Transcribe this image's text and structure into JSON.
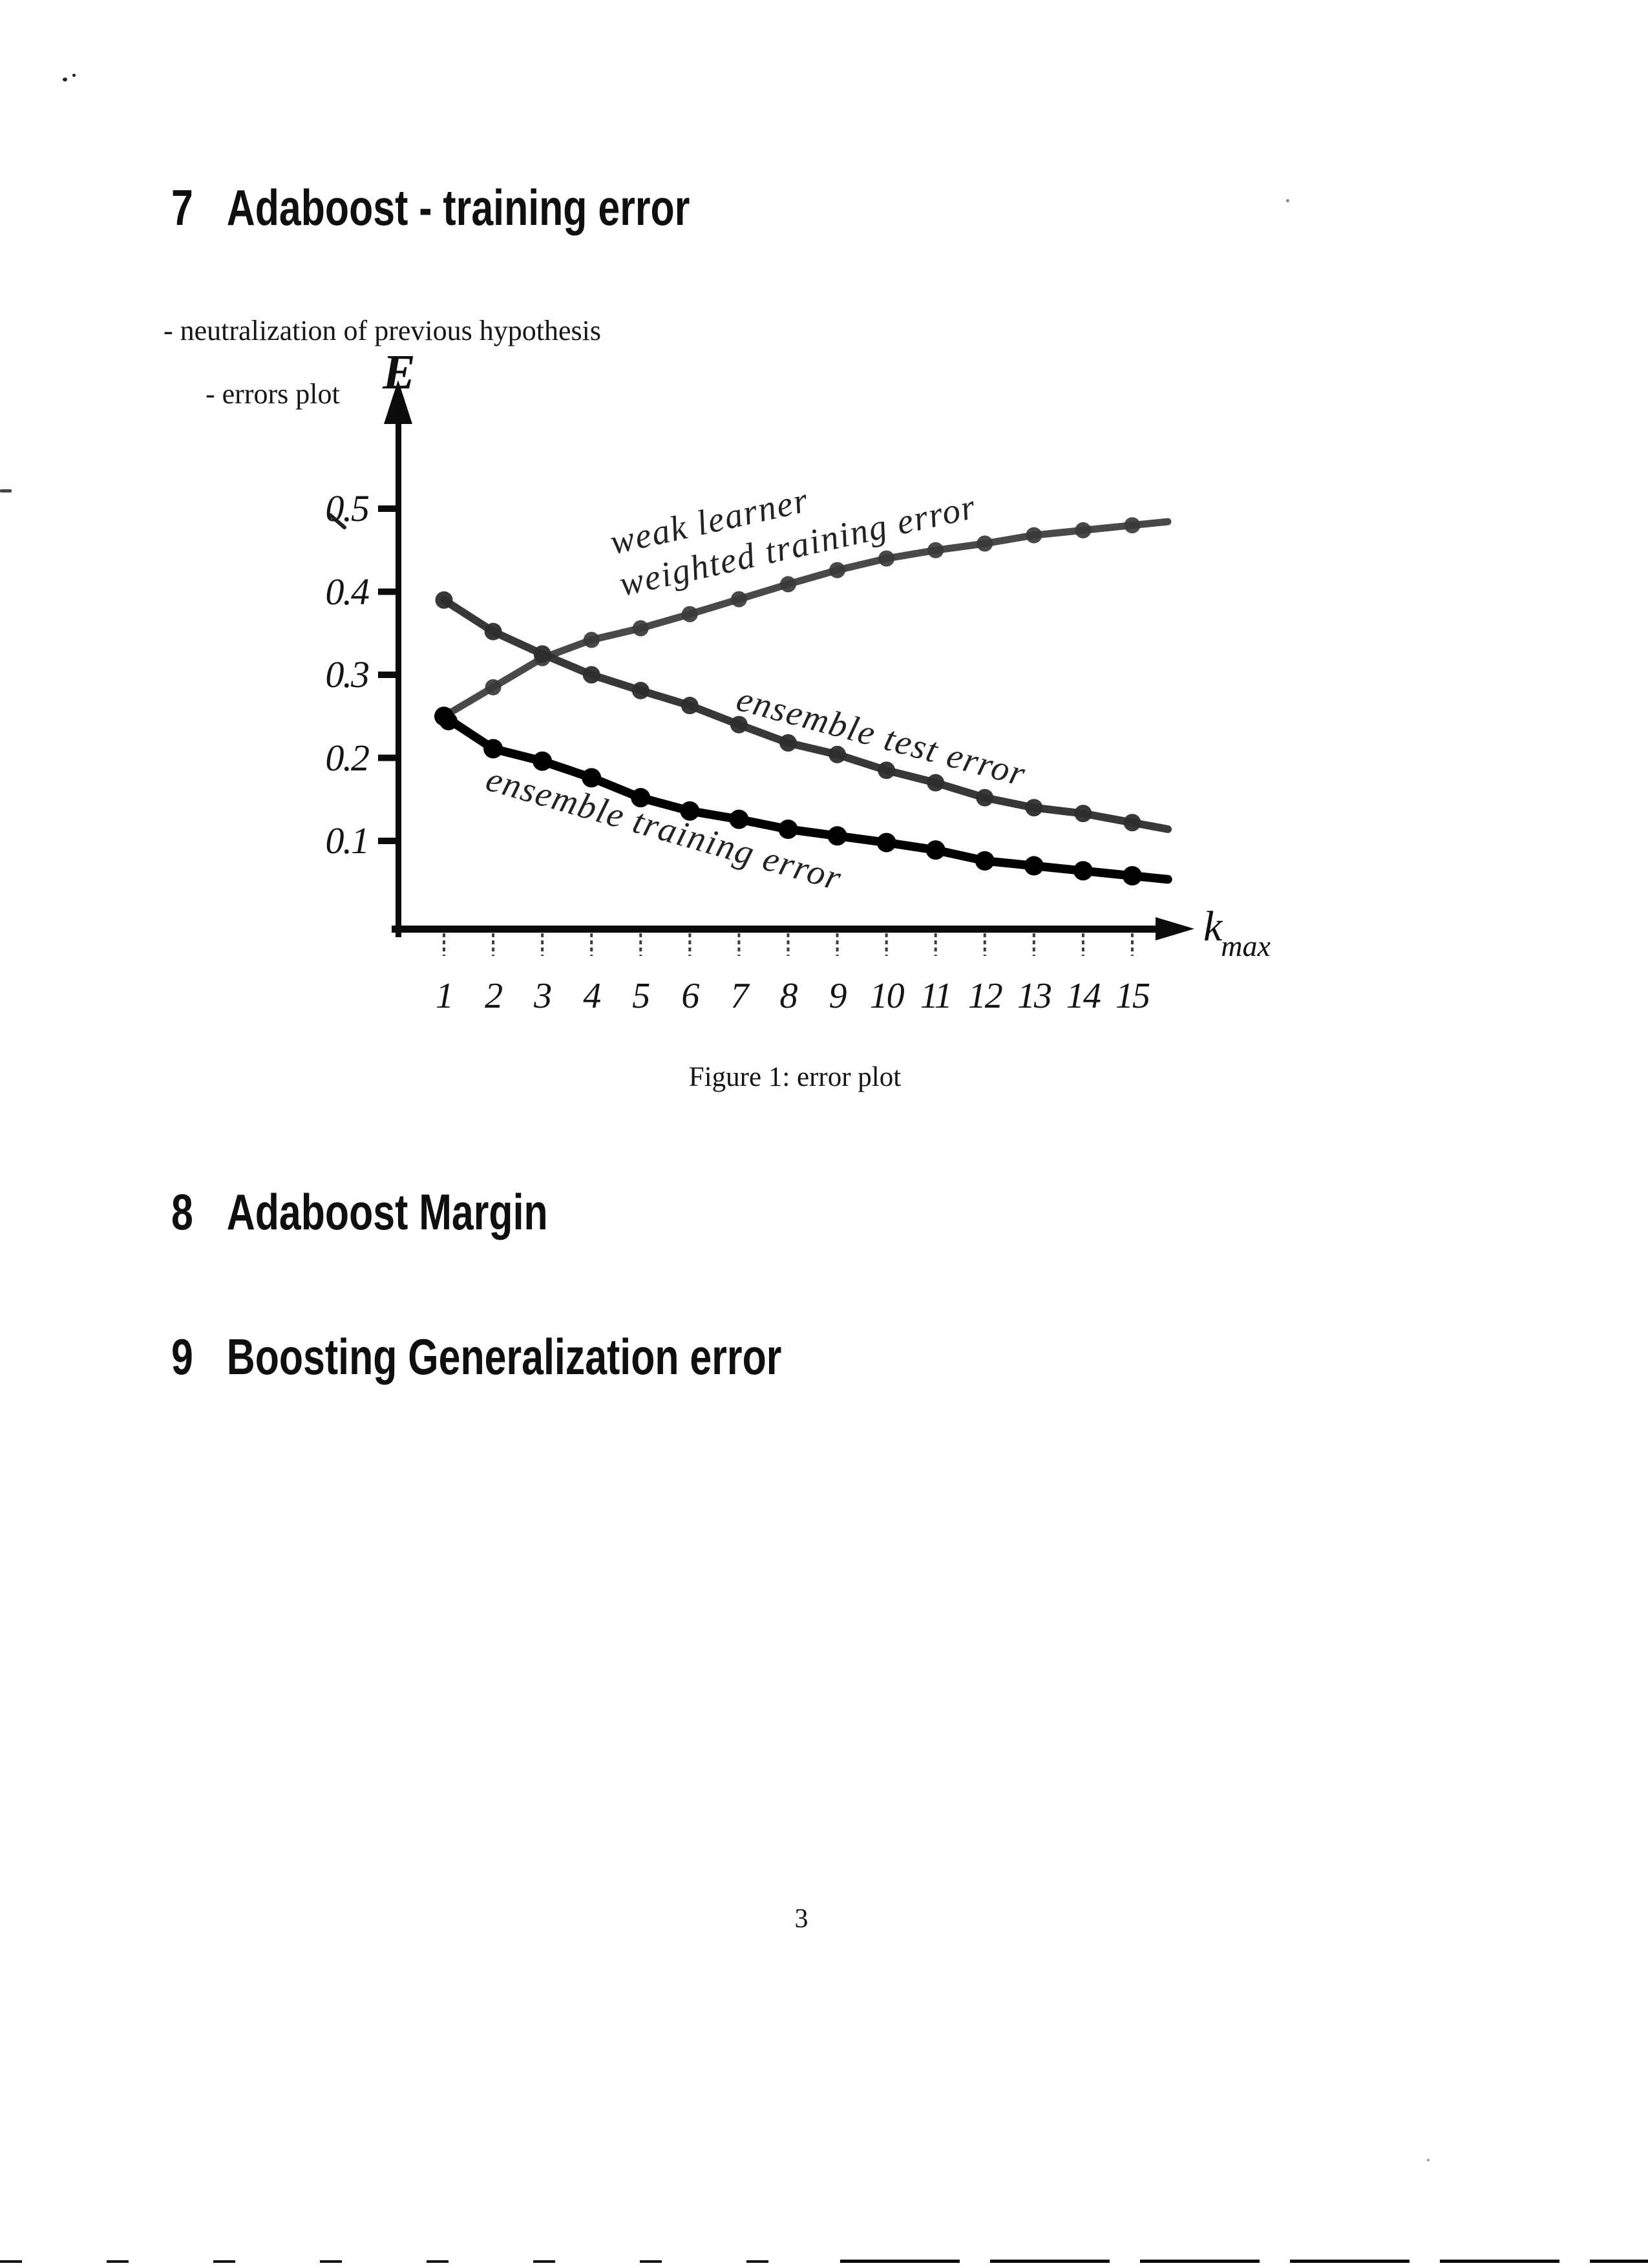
{
  "sections": [
    {
      "number": "7",
      "title": "Adaboost - training error"
    },
    {
      "number": "8",
      "title": "Adaboost Margin"
    },
    {
      "number": "9",
      "title": "Boosting Generalization error"
    }
  ],
  "notes": {
    "line1": "- neutralization of previous hypothesis",
    "line2": "- errors plot"
  },
  "figure": {
    "caption": "Figure 1: error plot"
  },
  "page": {
    "number": "3"
  },
  "colors": {
    "ink": "#111111",
    "paper": "#ffffff",
    "curve_gray": "#3a3a3a",
    "curve_dark": "#000000"
  },
  "chart_data": {
    "type": "line",
    "title": "",
    "xlabel": "k_max",
    "xlabel_main": "k",
    "xlabel_sub": "max",
    "ylabel": "E",
    "x": [
      1,
      2,
      3,
      4,
      5,
      6,
      7,
      8,
      9,
      10,
      11,
      12,
      13,
      14,
      15
    ],
    "x_tick_labels": [
      "1",
      "2",
      "3",
      "4",
      "5",
      "6",
      "7",
      "8",
      "9",
      "10",
      "11",
      "12",
      "13",
      "14",
      "15"
    ],
    "y_tick_labels": [
      "0.5",
      "0.4",
      "0.3",
      "0.2",
      "0.1"
    ],
    "y_tick_values": [
      0.5,
      0.4,
      0.3,
      0.2,
      0.1
    ],
    "ylim": [
      0,
      0.55
    ],
    "xlim": [
      0,
      16
    ],
    "grid": false,
    "legend_position": "labels-on-curves",
    "series": [
      {
        "name": "weak learner weighted training error",
        "label_lines": [
          "weak learner",
          "weighted training error"
        ],
        "values": [
          0.25,
          0.285,
          0.32,
          0.342,
          0.356,
          0.373,
          0.391,
          0.409,
          0.426,
          0.44,
          0.45,
          0.458,
          0.468,
          0.474,
          0.48
        ]
      },
      {
        "name": "ensemble test error",
        "label_lines": [
          "ensemble test error"
        ],
        "values": [
          0.39,
          0.352,
          0.325,
          0.3,
          0.281,
          0.263,
          0.24,
          0.218,
          0.204,
          0.185,
          0.17,
          0.152,
          0.14,
          0.133,
          0.122
        ]
      },
      {
        "name": "ensemble training error",
        "label_lines": [
          "ensemble training error"
        ],
        "values": [
          0.25,
          0.211,
          0.196,
          0.176,
          0.152,
          0.136,
          0.126,
          0.114,
          0.106,
          0.098,
          0.089,
          0.076,
          0.07,
          0.064,
          0.058
        ]
      }
    ]
  }
}
